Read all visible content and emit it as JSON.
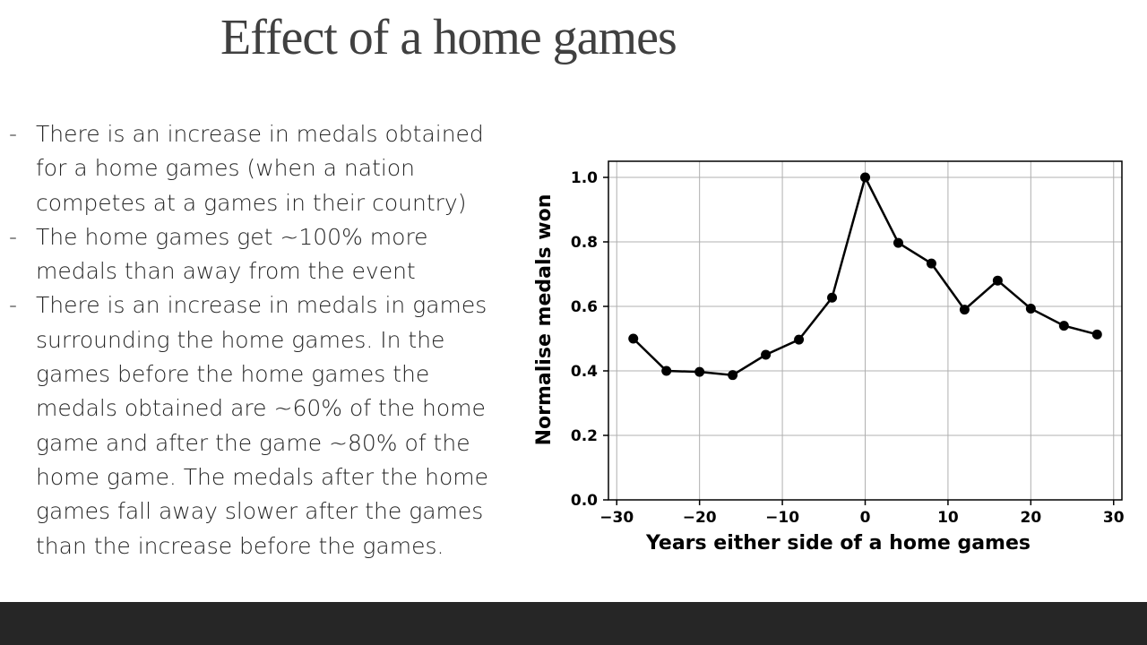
{
  "slide": {
    "title": "Effect of a home games",
    "bullets": [
      "There is an increase in medals obtained for a home games (when a nation competes at a games in their country)",
      "The home games get ~100% more medals than away from the event",
      "There is an increase in medals in games surrounding the home games. In the games before the home games the medals obtained are ~60% of the home game and after the game ~80% of the home game. The medals after the home games fall away slower after the games than the increase before the games."
    ],
    "bullet_marker": "-"
  },
  "colors": {
    "title": "#404040",
    "body_text": "#262626",
    "footer": "#262626",
    "line": "#000000",
    "grid": "#b0b0b0"
  },
  "chart_data": {
    "type": "line",
    "title": "",
    "xlabel": "Years either side of a home games",
    "ylabel": "Normalise medals won",
    "xlim": [
      -31,
      31
    ],
    "ylim": [
      0.0,
      1.05
    ],
    "xticks": [
      -30,
      -20,
      -10,
      0,
      10,
      20,
      30
    ],
    "yticks": [
      0.0,
      0.2,
      0.4,
      0.6,
      0.8,
      1.0
    ],
    "xtick_labels": [
      "−30",
      "−20",
      "−10",
      "0",
      "10",
      "20",
      "30"
    ],
    "ytick_labels": [
      "0.0",
      "0.2",
      "0.4",
      "0.6",
      "0.8",
      "1.0"
    ],
    "grid": true,
    "markers": true,
    "series": [
      {
        "x": [
          -28,
          -24,
          -20,
          -16,
          -12,
          -8,
          -4,
          0,
          4,
          8,
          12,
          16,
          20,
          24,
          28
        ],
        "y": [
          0.5,
          0.4,
          0.397,
          0.387,
          0.45,
          0.497,
          0.627,
          1.0,
          0.797,
          0.733,
          0.59,
          0.68,
          0.593,
          0.54,
          0.513
        ]
      }
    ]
  }
}
